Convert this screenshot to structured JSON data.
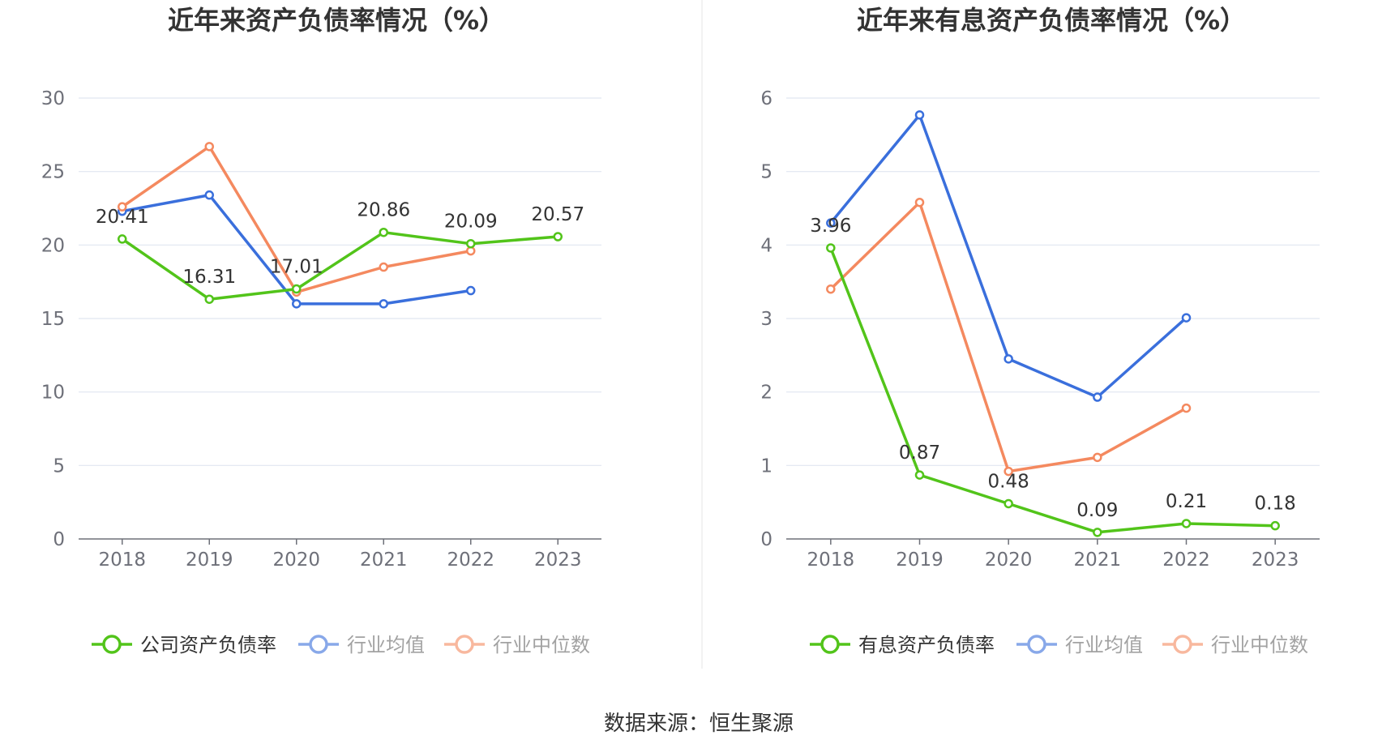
{
  "source": "数据来源：恒生聚源",
  "chart_data": [
    {
      "type": "line",
      "title": "近年来资产负债率情况（%）",
      "categories": [
        "2018",
        "2019",
        "2020",
        "2021",
        "2022",
        "2023"
      ],
      "ylim": [
        0,
        30
      ],
      "yticks": [
        0,
        5,
        10,
        15,
        20,
        25,
        30
      ],
      "grid": true,
      "legend_position": "bottom",
      "series": [
        {
          "name": "公司资产负债率",
          "color": "#52c41a",
          "values": [
            20.41,
            16.31,
            17.01,
            20.86,
            20.09,
            20.57
          ],
          "labels": [
            "20.41",
            "16.31",
            "17.01",
            "20.86",
            "20.09",
            "20.57"
          ]
        },
        {
          "name": "行业均值",
          "color": "#3a6fdc",
          "values": [
            22.3,
            23.4,
            16.0,
            16.0,
            16.9,
            null
          ],
          "labels": null
        },
        {
          "name": "行业中位数",
          "color": "#f4895f",
          "values": [
            22.6,
            26.7,
            16.8,
            18.5,
            19.6,
            null
          ],
          "labels": null
        }
      ]
    },
    {
      "type": "line",
      "title": "近年来有息资产负债率情况（%）",
      "categories": [
        "2018",
        "2019",
        "2020",
        "2021",
        "2022",
        "2023"
      ],
      "ylim": [
        0,
        6
      ],
      "yticks": [
        0,
        1,
        2,
        3,
        4,
        5,
        6
      ],
      "grid": true,
      "legend_position": "bottom",
      "series": [
        {
          "name": "有息资产负债率",
          "color": "#52c41a",
          "values": [
            3.96,
            0.87,
            0.48,
            0.09,
            0.21,
            0.18
          ],
          "labels": [
            "3.96",
            "0.87",
            "0.48",
            "0.09",
            "0.21",
            "0.18"
          ]
        },
        {
          "name": "行业均值",
          "color": "#3a6fdc",
          "values": [
            4.3,
            5.77,
            2.45,
            1.93,
            3.01,
            null
          ],
          "labels": null
        },
        {
          "name": "行业中位数",
          "color": "#f4895f",
          "values": [
            3.4,
            4.58,
            0.92,
            1.11,
            1.78,
            null
          ],
          "labels": null
        }
      ]
    }
  ]
}
